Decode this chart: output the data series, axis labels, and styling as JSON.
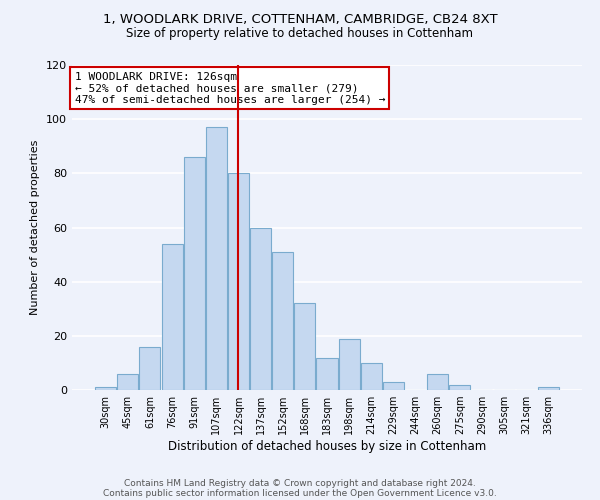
{
  "title1": "1, WOODLARK DRIVE, COTTENHAM, CAMBRIDGE, CB24 8XT",
  "title2": "Size of property relative to detached houses in Cottenham",
  "xlabel": "Distribution of detached houses by size in Cottenham",
  "ylabel": "Number of detached properties",
  "bar_color": "#c5d8f0",
  "bar_edge_color": "#7aabce",
  "categories": [
    "30sqm",
    "45sqm",
    "61sqm",
    "76sqm",
    "91sqm",
    "107sqm",
    "122sqm",
    "137sqm",
    "152sqm",
    "168sqm",
    "183sqm",
    "198sqm",
    "214sqm",
    "229sqm",
    "244sqm",
    "260sqm",
    "275sqm",
    "290sqm",
    "305sqm",
    "321sqm",
    "336sqm"
  ],
  "values": [
    1,
    6,
    16,
    54,
    86,
    97,
    80,
    60,
    51,
    32,
    12,
    19,
    10,
    3,
    0,
    6,
    2,
    0,
    0,
    0,
    1
  ],
  "vline_x": 6,
  "vline_color": "#cc0000",
  "annotation_title": "1 WOODLARK DRIVE: 126sqm",
  "annotation_line1": "← 52% of detached houses are smaller (279)",
  "annotation_line2": "47% of semi-detached houses are larger (254) →",
  "annotation_box_color": "#ffffff",
  "annotation_box_edge": "#cc0000",
  "footer1": "Contains HM Land Registry data © Crown copyright and database right 2024.",
  "footer2": "Contains public sector information licensed under the Open Government Licence v3.0.",
  "ylim": [
    0,
    120
  ],
  "background_color": "#eef2fb"
}
